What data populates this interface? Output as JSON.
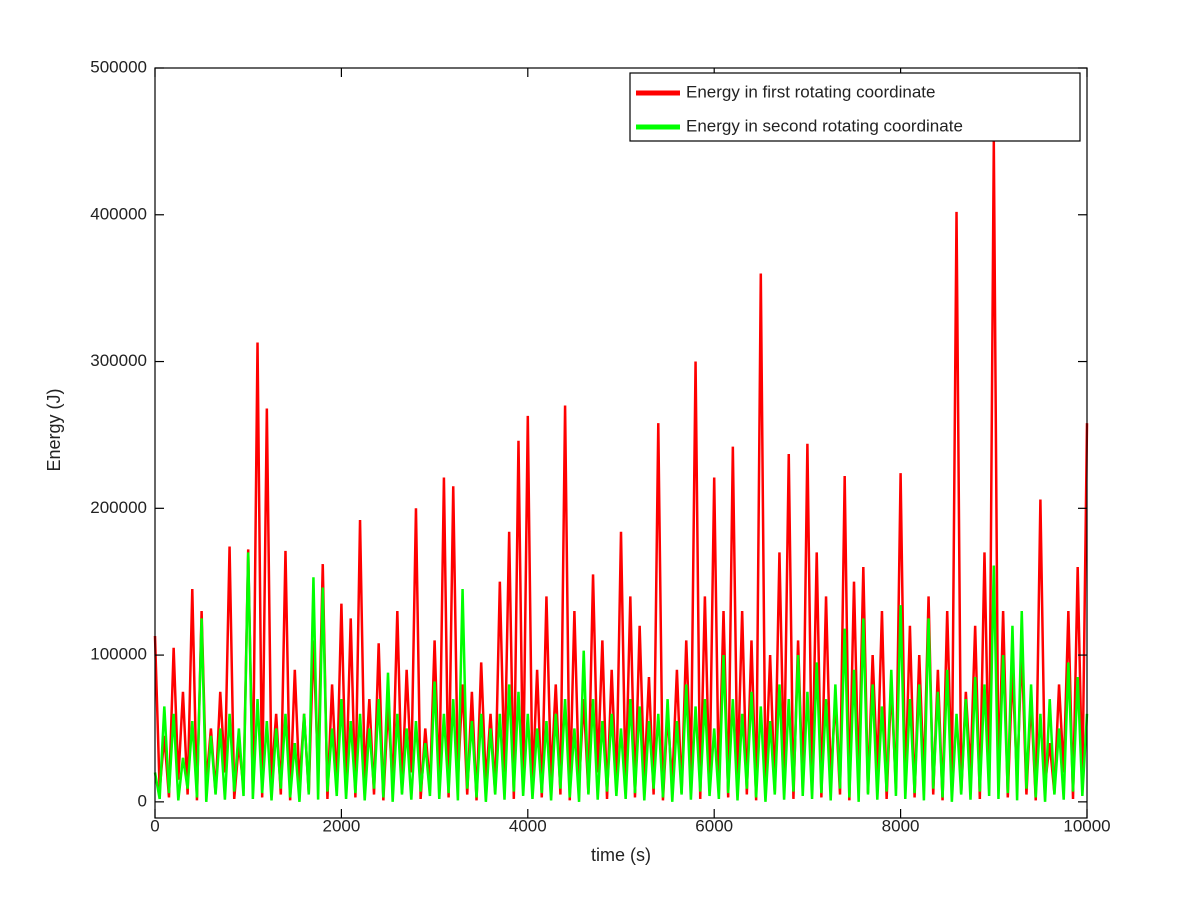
{
  "chart_data": {
    "type": "line",
    "xlabel": "time (s)",
    "ylabel": "Energy (J)",
    "x": [
      0,
      50,
      100,
      150,
      200,
      250,
      300,
      350,
      400,
      450,
      500,
      550,
      600,
      650,
      700,
      750,
      800,
      850,
      900,
      950,
      1000,
      1050,
      1100,
      1150,
      1200,
      1250,
      1300,
      1350,
      1400,
      1450,
      1500,
      1550,
      1600,
      1650,
      1700,
      1750,
      1800,
      1850,
      1900,
      1950,
      2000,
      2050,
      2100,
      2150,
      2200,
      2250,
      2300,
      2350,
      2400,
      2450,
      2500,
      2550,
      2600,
      2650,
      2700,
      2750,
      2800,
      2850,
      2900,
      2950,
      3000,
      3050,
      3100,
      3150,
      3200,
      3250,
      3300,
      3350,
      3400,
      3450,
      3500,
      3550,
      3600,
      3650,
      3700,
      3750,
      3800,
      3850,
      3900,
      3950,
      4000,
      4050,
      4100,
      4150,
      4200,
      4250,
      4300,
      4350,
      4400,
      4450,
      4500,
      4550,
      4600,
      4650,
      4700,
      4750,
      4800,
      4850,
      4900,
      4950,
      5000,
      5050,
      5100,
      5150,
      5200,
      5250,
      5300,
      5350,
      5400,
      5450,
      5500,
      5550,
      5600,
      5650,
      5700,
      5750,
      5800,
      5850,
      5900,
      5950,
      6000,
      6050,
      6100,
      6150,
      6200,
      6250,
      6300,
      6350,
      6400,
      6450,
      6500,
      6550,
      6600,
      6650,
      6700,
      6750,
      6800,
      6850,
      6900,
      6950,
      7000,
      7050,
      7100,
      7150,
      7200,
      7250,
      7300,
      7350,
      7400,
      7450,
      7500,
      7550,
      7600,
      7650,
      7700,
      7750,
      7800,
      7850,
      7900,
      7950,
      8000,
      8050,
      8100,
      8150,
      8200,
      8250,
      8300,
      8350,
      8400,
      8450,
      8500,
      8550,
      8600,
      8650,
      8700,
      8750,
      8800,
      8850,
      8900,
      8950,
      9000,
      9050,
      9100,
      9150,
      9200,
      9250,
      9300,
      9350,
      9400,
      9450,
      9500,
      9550,
      9600,
      9650,
      9700,
      9750,
      9800,
      9850,
      9900,
      9950,
      10000
    ],
    "series": [
      {
        "name": "Energy in first rotating coordinate",
        "color": "#ff0000",
        "values": [
          113000,
          8000,
          45000,
          3000,
          105000,
          15000,
          75000,
          5000,
          145000,
          1000,
          130000,
          12000,
          50000,
          6000,
          75000,
          20000,
          174000,
          2000,
          40000,
          9000,
          172000,
          8000,
          313000,
          3000,
          268000,
          15000,
          60000,
          5000,
          171000,
          1000,
          90000,
          12000,
          60000,
          6000,
          110000,
          20000,
          162000,
          2000,
          80000,
          9000,
          135000,
          8000,
          125000,
          3000,
          192000,
          15000,
          70000,
          5000,
          108000,
          1000,
          65000,
          12000,
          130000,
          6000,
          90000,
          20000,
          200000,
          2000,
          50000,
          9000,
          110000,
          8000,
          221000,
          3000,
          215000,
          15000,
          80000,
          5000,
          75000,
          1000,
          95000,
          12000,
          60000,
          6000,
          150000,
          20000,
          184000,
          2000,
          246000,
          9000,
          263000,
          8000,
          90000,
          3000,
          140000,
          15000,
          80000,
          5000,
          270000,
          1000,
          130000,
          12000,
          70000,
          6000,
          155000,
          20000,
          110000,
          2000,
          90000,
          9000,
          184000,
          8000,
          140000,
          3000,
          120000,
          15000,
          85000,
          5000,
          258000,
          1000,
          60000,
          12000,
          90000,
          6000,
          110000,
          20000,
          300000,
          2000,
          140000,
          9000,
          221000,
          8000,
          130000,
          3000,
          242000,
          15000,
          130000,
          5000,
          110000,
          1000,
          360000,
          12000,
          100000,
          6000,
          170000,
          20000,
          237000,
          2000,
          110000,
          9000,
          244000,
          8000,
          170000,
          3000,
          140000,
          15000,
          70000,
          5000,
          222000,
          1000,
          150000,
          12000,
          160000,
          6000,
          100000,
          20000,
          130000,
          2000,
          80000,
          9000,
          224000,
          8000,
          120000,
          3000,
          100000,
          15000,
          140000,
          5000,
          90000,
          1000,
          130000,
          12000,
          402000,
          6000,
          75000,
          20000,
          120000,
          2000,
          170000,
          9000,
          450000,
          8000,
          130000,
          3000,
          90000,
          15000,
          105000,
          5000,
          70000,
          1000,
          206000,
          12000,
          40000,
          6000,
          80000,
          20000,
          130000,
          2000,
          160000,
          9000,
          258000
        ]
      },
      {
        "name": "Energy in second rotating coordinate",
        "color": "#00ff00",
        "values": [
          20000,
          2000,
          65000,
          6000,
          60000,
          1000,
          30000,
          9000,
          55000,
          3000,
          125000,
          0,
          45000,
          5000,
          50000,
          1500,
          60000,
          7000,
          50000,
          4000,
          170000,
          2000,
          70000,
          6000,
          55000,
          1000,
          50000,
          9000,
          60000,
          3000,
          40000,
          0,
          60000,
          5000,
          153000,
          1500,
          146000,
          7000,
          50000,
          4000,
          70000,
          2000,
          55000,
          6000,
          60000,
          1000,
          50000,
          9000,
          70000,
          3000,
          88000,
          0,
          60000,
          5000,
          50000,
          1500,
          55000,
          7000,
          40000,
          4000,
          82000,
          2000,
          60000,
          6000,
          70000,
          1000,
          145000,
          9000,
          55000,
          3000,
          60000,
          0,
          50000,
          5000,
          60000,
          1500,
          80000,
          7000,
          75000,
          4000,
          60000,
          2000,
          50000,
          6000,
          55000,
          1000,
          60000,
          9000,
          70000,
          3000,
          50000,
          0,
          103000,
          5000,
          70000,
          1500,
          55000,
          7000,
          60000,
          4000,
          50000,
          2000,
          70000,
          6000,
          65000,
          1000,
          55000,
          9000,
          60000,
          3000,
          70000,
          0,
          55000,
          5000,
          80000,
          1500,
          65000,
          7000,
          70000,
          4000,
          50000,
          2000,
          100000,
          6000,
          70000,
          1000,
          60000,
          9000,
          75000,
          3000,
          65000,
          0,
          55000,
          5000,
          80000,
          1500,
          70000,
          7000,
          100000,
          4000,
          75000,
          2000,
          95000,
          6000,
          70000,
          1000,
          80000,
          9000,
          118000,
          3000,
          90000,
          0,
          125000,
          5000,
          80000,
          1500,
          65000,
          7000,
          90000,
          4000,
          134000,
          2000,
          70000,
          6000,
          80000,
          1000,
          125000,
          9000,
          75000,
          3000,
          90000,
          0,
          60000,
          5000,
          70000,
          1500,
          85000,
          7000,
          80000,
          4000,
          161000,
          2000,
          100000,
          6000,
          120000,
          1000,
          130000,
          9000,
          80000,
          3000,
          60000,
          0,
          70000,
          5000,
          50000,
          1500,
          95000,
          7000,
          85000,
          4000,
          60000
        ]
      }
    ],
    "xlim": [
      0,
      10000
    ],
    "ylim": [
      -11000,
      500000
    ],
    "xticks": [
      0,
      2000,
      4000,
      6000,
      8000,
      10000
    ],
    "yticks": [
      0,
      100000,
      200000,
      300000,
      400000,
      500000
    ],
    "grid": false,
    "legend": "northeast"
  }
}
